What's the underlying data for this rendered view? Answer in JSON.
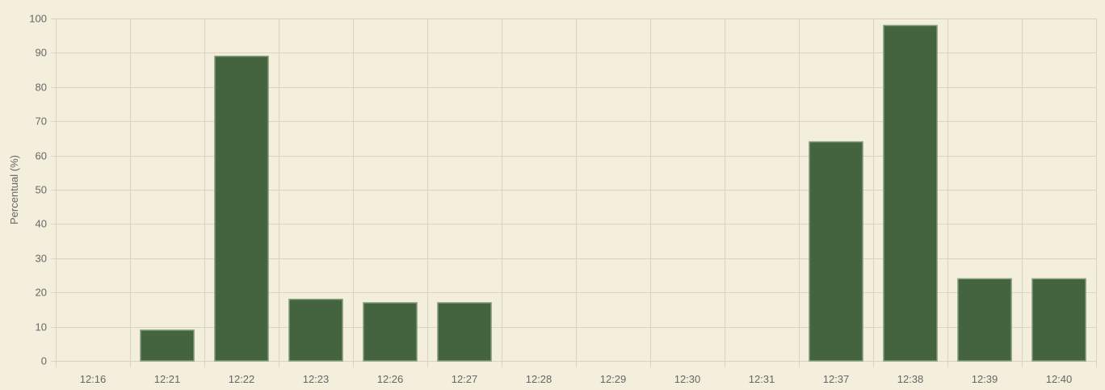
{
  "colors": {
    "background": "#f4efdc",
    "bar_fill": "#44643f",
    "bar_border": "#8aa383",
    "grid": "#d9d3c0",
    "text": "#666666"
  },
  "chart_data": {
    "type": "bar",
    "title": "",
    "xlabel": "",
    "ylabel": "Percentual (%)",
    "ylim": [
      0,
      100
    ],
    "y_ticks": [
      0,
      10,
      20,
      30,
      40,
      50,
      60,
      70,
      80,
      90,
      100
    ],
    "grid": true,
    "legend": "none",
    "categories": [
      "12:16",
      "12:21",
      "12:22",
      "12:23",
      "12:26",
      "12:27",
      "12:28",
      "12:29",
      "12:30",
      "12:31",
      "12:37",
      "12:38",
      "12:39",
      "12:40"
    ],
    "series": [
      {
        "values": [
          0,
          9,
          89,
          18,
          17,
          17,
          0,
          0,
          0,
          0,
          64,
          98,
          24,
          24
        ]
      }
    ]
  }
}
